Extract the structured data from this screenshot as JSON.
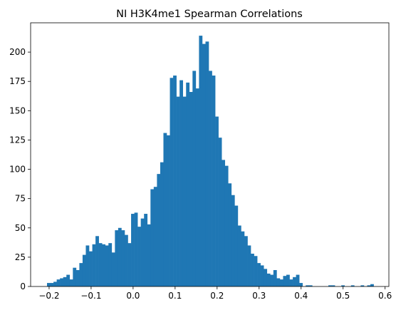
{
  "chart_data": {
    "type": "histogram",
    "title": "NI H3K4me1 Spearman Correlations",
    "xlabel": "",
    "ylabel": "",
    "xlim": [
      -0.244,
      0.609
    ],
    "ylim": [
      0,
      225
    ],
    "x_ticks": [
      -0.2,
      -0.1,
      0.0,
      0.1,
      0.2,
      0.3,
      0.4,
      0.5,
      0.6
    ],
    "x_tick_labels": [
      "−0.2",
      "−0.1",
      "0.0",
      "0.1",
      "0.2",
      "0.3",
      "0.4",
      "0.5",
      "0.6"
    ],
    "y_ticks": [
      0,
      25,
      50,
      75,
      100,
      125,
      150,
      175,
      200
    ],
    "y_tick_labels": [
      "0",
      "25",
      "50",
      "75",
      "100",
      "125",
      "150",
      "175",
      "200"
    ],
    "bin_start": -0.205,
    "bin_width": 0.0077,
    "counts": [
      3,
      3,
      4,
      6,
      7,
      8,
      10,
      6,
      16,
      14,
      20,
      27,
      35,
      30,
      36,
      43,
      37,
      36,
      35,
      37,
      29,
      48,
      50,
      48,
      44,
      37,
      62,
      63,
      51,
      58,
      62,
      53,
      83,
      85,
      96,
      106,
      131,
      129,
      178,
      180,
      162,
      176,
      162,
      174,
      166,
      184,
      169,
      214,
      207,
      209,
      184,
      180,
      145,
      127,
      108,
      103,
      88,
      78,
      69,
      52,
      47,
      43,
      35,
      28,
      26,
      20,
      18,
      15,
      11,
      10,
      14,
      7,
      6,
      9,
      10,
      6,
      8,
      10,
      3,
      0,
      1,
      1,
      0,
      0,
      0,
      0,
      0,
      1,
      1,
      0,
      0,
      1,
      0,
      0,
      1,
      0,
      0,
      1,
      0,
      1,
      2
    ],
    "bar_color": "#1f77b4",
    "grid": false
  }
}
